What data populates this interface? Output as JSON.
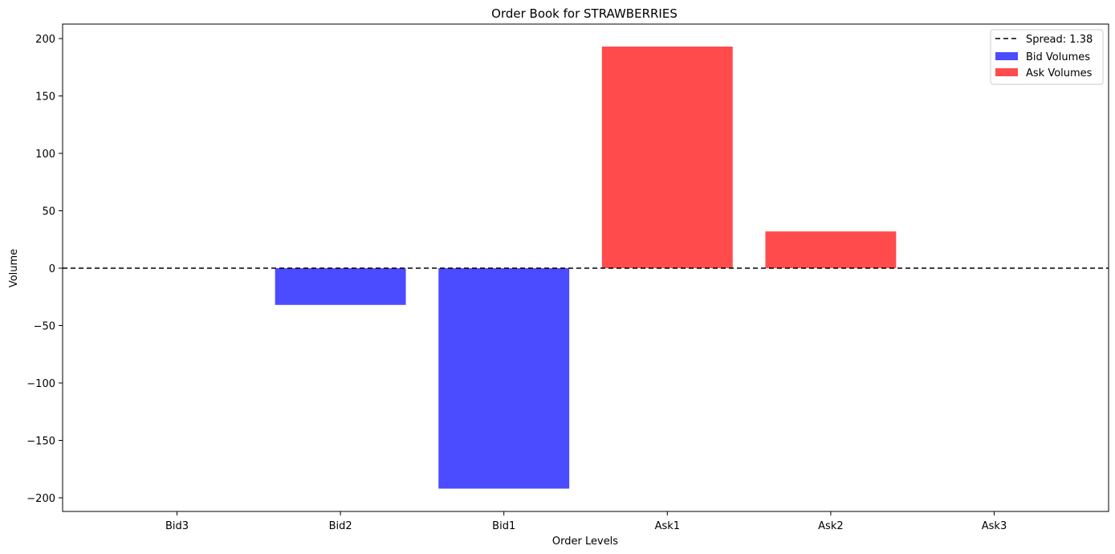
{
  "chart_data": {
    "type": "bar",
    "title": "Order Book for STRAWBERRIES",
    "xlabel": "Order Levels",
    "ylabel": "Volume",
    "categories": [
      "Bid3",
      "Bid2",
      "Bid1",
      "Ask1",
      "Ask2",
      "Ask3"
    ],
    "series": [
      {
        "name": "Bid Volumes",
        "color": "#4b4bff",
        "values": [
          0,
          -32,
          -192,
          null,
          null,
          null
        ]
      },
      {
        "name": "Ask Volumes",
        "color": "#ff4b4b",
        "values": [
          null,
          null,
          null,
          193,
          32,
          0
        ]
      }
    ],
    "reference_line": {
      "label": "Spread: 1.38",
      "y": 0,
      "style": "dashed",
      "color": "#000000"
    },
    "ylim": [
      -212,
      212
    ],
    "yticks": [
      200,
      150,
      100,
      50,
      0,
      -50,
      -100,
      -150,
      -200
    ],
    "ytick_labels": [
      "200",
      "150",
      "100",
      "50",
      "0",
      "−50",
      "−100",
      "−150",
      "−200"
    ],
    "grid": false,
    "legend_position": "top-right"
  }
}
